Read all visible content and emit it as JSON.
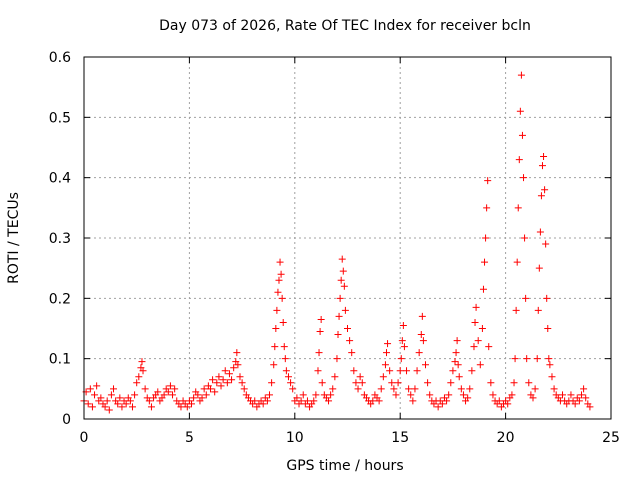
{
  "chart_data": {
    "type": "scatter",
    "title": "Day 073 of 2026, Rate Of TEC Index for receiver bcln",
    "xlabel": "GPS time / hours",
    "ylabel": "ROTI / TECUs",
    "xlim": [
      0,
      25
    ],
    "ylim": [
      0,
      0.6
    ],
    "xticks": [
      0,
      5,
      10,
      15,
      20,
      25
    ],
    "yticks": [
      0,
      0.1,
      0.2,
      0.3,
      0.4,
      0.5,
      0.6
    ],
    "xtick_labels": [
      "0",
      "5",
      "10",
      "15",
      "20",
      "25"
    ],
    "ytick_labels": [
      "0",
      "0.1",
      "0.2",
      "0.3",
      "0.4",
      "0.5",
      "0.6"
    ],
    "grid": true,
    "marker": "plus",
    "series": [
      {
        "name": "ROTI",
        "color": "#ff0000",
        "points": [
          [
            0.0,
            0.03
          ],
          [
            0.1,
            0.045
          ],
          [
            0.2,
            0.025
          ],
          [
            0.3,
            0.05
          ],
          [
            0.4,
            0.02
          ],
          [
            0.5,
            0.04
          ],
          [
            0.6,
            0.055
          ],
          [
            0.7,
            0.03
          ],
          [
            0.8,
            0.035
          ],
          [
            0.9,
            0.025
          ],
          [
            1.0,
            0.02
          ],
          [
            1.1,
            0.03
          ],
          [
            1.2,
            0.015
          ],
          [
            1.3,
            0.04
          ],
          [
            1.4,
            0.05
          ],
          [
            1.5,
            0.03
          ],
          [
            1.6,
            0.025
          ],
          [
            1.7,
            0.035
          ],
          [
            1.8,
            0.02
          ],
          [
            1.9,
            0.03
          ],
          [
            2.0,
            0.025
          ],
          [
            2.1,
            0.035
          ],
          [
            2.2,
            0.03
          ],
          [
            2.3,
            0.02
          ],
          [
            2.4,
            0.04
          ],
          [
            2.5,
            0.06
          ],
          [
            2.6,
            0.07
          ],
          [
            2.7,
            0.085
          ],
          [
            2.75,
            0.095
          ],
          [
            2.8,
            0.08
          ],
          [
            2.9,
            0.05
          ],
          [
            3.0,
            0.035
          ],
          [
            3.1,
            0.03
          ],
          [
            3.2,
            0.02
          ],
          [
            3.3,
            0.035
          ],
          [
            3.4,
            0.04
          ],
          [
            3.5,
            0.045
          ],
          [
            3.6,
            0.03
          ],
          [
            3.7,
            0.035
          ],
          [
            3.8,
            0.04
          ],
          [
            3.9,
            0.05
          ],
          [
            4.0,
            0.045
          ],
          [
            4.1,
            0.055
          ],
          [
            4.2,
            0.04
          ],
          [
            4.3,
            0.05
          ],
          [
            4.4,
            0.03
          ],
          [
            4.5,
            0.025
          ],
          [
            4.6,
            0.02
          ],
          [
            4.7,
            0.03
          ],
          [
            4.8,
            0.025
          ],
          [
            4.9,
            0.02
          ],
          [
            5.0,
            0.03
          ],
          [
            5.1,
            0.025
          ],
          [
            5.2,
            0.035
          ],
          [
            5.3,
            0.045
          ],
          [
            5.4,
            0.04
          ],
          [
            5.5,
            0.03
          ],
          [
            5.6,
            0.035
          ],
          [
            5.7,
            0.05
          ],
          [
            5.8,
            0.04
          ],
          [
            5.9,
            0.055
          ],
          [
            6.0,
            0.05
          ],
          [
            6.1,
            0.065
          ],
          [
            6.2,
            0.045
          ],
          [
            6.3,
            0.06
          ],
          [
            6.4,
            0.07
          ],
          [
            6.5,
            0.055
          ],
          [
            6.6,
            0.065
          ],
          [
            6.7,
            0.08
          ],
          [
            6.8,
            0.06
          ],
          [
            6.9,
            0.075
          ],
          [
            7.0,
            0.065
          ],
          [
            7.1,
            0.085
          ],
          [
            7.2,
            0.095
          ],
          [
            7.25,
            0.11
          ],
          [
            7.3,
            0.09
          ],
          [
            7.4,
            0.07
          ],
          [
            7.5,
            0.06
          ],
          [
            7.6,
            0.05
          ],
          [
            7.7,
            0.04
          ],
          [
            7.8,
            0.035
          ],
          [
            7.9,
            0.03
          ],
          [
            8.0,
            0.025
          ],
          [
            8.1,
            0.03
          ],
          [
            8.2,
            0.02
          ],
          [
            8.3,
            0.025
          ],
          [
            8.4,
            0.03
          ],
          [
            8.5,
            0.025
          ],
          [
            8.6,
            0.035
          ],
          [
            8.7,
            0.03
          ],
          [
            8.8,
            0.04
          ],
          [
            8.9,
            0.06
          ],
          [
            9.0,
            0.09
          ],
          [
            9.05,
            0.12
          ],
          [
            9.1,
            0.15
          ],
          [
            9.15,
            0.18
          ],
          [
            9.2,
            0.21
          ],
          [
            9.25,
            0.23
          ],
          [
            9.3,
            0.26
          ],
          [
            9.35,
            0.24
          ],
          [
            9.4,
            0.2
          ],
          [
            9.45,
            0.16
          ],
          [
            9.5,
            0.12
          ],
          [
            9.55,
            0.1
          ],
          [
            9.6,
            0.08
          ],
          [
            9.7,
            0.07
          ],
          [
            9.8,
            0.06
          ],
          [
            9.9,
            0.05
          ],
          [
            10.0,
            0.03
          ],
          [
            10.1,
            0.035
          ],
          [
            10.2,
            0.025
          ],
          [
            10.3,
            0.03
          ],
          [
            10.4,
            0.04
          ],
          [
            10.5,
            0.025
          ],
          [
            10.6,
            0.03
          ],
          [
            10.7,
            0.02
          ],
          [
            10.8,
            0.025
          ],
          [
            10.9,
            0.03
          ],
          [
            11.0,
            0.04
          ],
          [
            11.1,
            0.08
          ],
          [
            11.15,
            0.11
          ],
          [
            11.2,
            0.145
          ],
          [
            11.25,
            0.165
          ],
          [
            11.3,
            0.06
          ],
          [
            11.4,
            0.04
          ],
          [
            11.5,
            0.035
          ],
          [
            11.6,
            0.03
          ],
          [
            11.7,
            0.04
          ],
          [
            11.8,
            0.05
          ],
          [
            11.9,
            0.07
          ],
          [
            12.0,
            0.1
          ],
          [
            12.05,
            0.14
          ],
          [
            12.1,
            0.17
          ],
          [
            12.15,
            0.2
          ],
          [
            12.2,
            0.23
          ],
          [
            12.25,
            0.265
          ],
          [
            12.3,
            0.245
          ],
          [
            12.35,
            0.22
          ],
          [
            12.4,
            0.18
          ],
          [
            12.5,
            0.15
          ],
          [
            12.6,
            0.13
          ],
          [
            12.7,
            0.11
          ],
          [
            12.8,
            0.08
          ],
          [
            12.9,
            0.06
          ],
          [
            13.0,
            0.05
          ],
          [
            13.1,
            0.07
          ],
          [
            13.2,
            0.06
          ],
          [
            13.3,
            0.04
          ],
          [
            13.4,
            0.035
          ],
          [
            13.5,
            0.03
          ],
          [
            13.6,
            0.025
          ],
          [
            13.7,
            0.03
          ],
          [
            13.8,
            0.04
          ],
          [
            13.9,
            0.035
          ],
          [
            14.0,
            0.03
          ],
          [
            14.1,
            0.05
          ],
          [
            14.2,
            0.07
          ],
          [
            14.3,
            0.09
          ],
          [
            14.35,
            0.11
          ],
          [
            14.4,
            0.125
          ],
          [
            14.5,
            0.08
          ],
          [
            14.6,
            0.06
          ],
          [
            14.7,
            0.05
          ],
          [
            14.8,
            0.04
          ],
          [
            14.9,
            0.06
          ],
          [
            15.0,
            0.08
          ],
          [
            15.05,
            0.1
          ],
          [
            15.1,
            0.13
          ],
          [
            15.15,
            0.155
          ],
          [
            15.2,
            0.12
          ],
          [
            15.3,
            0.08
          ],
          [
            15.4,
            0.05
          ],
          [
            15.5,
            0.04
          ],
          [
            15.6,
            0.03
          ],
          [
            15.7,
            0.05
          ],
          [
            15.8,
            0.08
          ],
          [
            15.9,
            0.11
          ],
          [
            16.0,
            0.14
          ],
          [
            16.05,
            0.17
          ],
          [
            16.1,
            0.13
          ],
          [
            16.2,
            0.09
          ],
          [
            16.3,
            0.06
          ],
          [
            16.4,
            0.04
          ],
          [
            16.5,
            0.03
          ],
          [
            16.6,
            0.025
          ],
          [
            16.7,
            0.03
          ],
          [
            16.8,
            0.02
          ],
          [
            16.9,
            0.03
          ],
          [
            17.0,
            0.025
          ],
          [
            17.1,
            0.035
          ],
          [
            17.2,
            0.03
          ],
          [
            17.3,
            0.04
          ],
          [
            17.4,
            0.06
          ],
          [
            17.5,
            0.08
          ],
          [
            17.6,
            0.095
          ],
          [
            17.65,
            0.11
          ],
          [
            17.7,
            0.13
          ],
          [
            17.75,
            0.09
          ],
          [
            17.8,
            0.07
          ],
          [
            17.9,
            0.05
          ],
          [
            18.0,
            0.04
          ],
          [
            18.1,
            0.03
          ],
          [
            18.2,
            0.035
          ],
          [
            18.3,
            0.05
          ],
          [
            18.4,
            0.08
          ],
          [
            18.5,
            0.12
          ],
          [
            18.55,
            0.16
          ],
          [
            18.6,
            0.185
          ],
          [
            18.7,
            0.13
          ],
          [
            18.8,
            0.09
          ],
          [
            18.9,
            0.15
          ],
          [
            18.95,
            0.215
          ],
          [
            19.0,
            0.26
          ],
          [
            19.05,
            0.3
          ],
          [
            19.1,
            0.35
          ],
          [
            19.15,
            0.395
          ],
          [
            19.2,
            0.12
          ],
          [
            19.3,
            0.06
          ],
          [
            19.4,
            0.04
          ],
          [
            19.5,
            0.03
          ],
          [
            19.6,
            0.025
          ],
          [
            19.7,
            0.03
          ],
          [
            19.8,
            0.02
          ],
          [
            19.9,
            0.025
          ],
          [
            20.0,
            0.03
          ],
          [
            20.1,
            0.025
          ],
          [
            20.2,
            0.035
          ],
          [
            20.3,
            0.04
          ],
          [
            20.4,
            0.06
          ],
          [
            20.45,
            0.1
          ],
          [
            20.5,
            0.18
          ],
          [
            20.55,
            0.26
          ],
          [
            20.6,
            0.35
          ],
          [
            20.65,
            0.43
          ],
          [
            20.7,
            0.51
          ],
          [
            20.75,
            0.57
          ],
          [
            20.8,
            0.47
          ],
          [
            20.85,
            0.4
          ],
          [
            20.9,
            0.3
          ],
          [
            20.95,
            0.2
          ],
          [
            21.0,
            0.1
          ],
          [
            21.1,
            0.06
          ],
          [
            21.2,
            0.04
          ],
          [
            21.3,
            0.035
          ],
          [
            21.4,
            0.05
          ],
          [
            21.5,
            0.1
          ],
          [
            21.55,
            0.18
          ],
          [
            21.6,
            0.25
          ],
          [
            21.65,
            0.31
          ],
          [
            21.7,
            0.37
          ],
          [
            21.75,
            0.42
          ],
          [
            21.8,
            0.435
          ],
          [
            21.85,
            0.38
          ],
          [
            21.9,
            0.29
          ],
          [
            21.95,
            0.2
          ],
          [
            22.0,
            0.15
          ],
          [
            22.05,
            0.1
          ],
          [
            22.1,
            0.09
          ],
          [
            22.2,
            0.07
          ],
          [
            22.3,
            0.05
          ],
          [
            22.4,
            0.04
          ],
          [
            22.5,
            0.035
          ],
          [
            22.6,
            0.03
          ],
          [
            22.7,
            0.04
          ],
          [
            22.8,
            0.03
          ],
          [
            22.9,
            0.025
          ],
          [
            23.0,
            0.03
          ],
          [
            23.1,
            0.04
          ],
          [
            23.2,
            0.03
          ],
          [
            23.3,
            0.025
          ],
          [
            23.4,
            0.035
          ],
          [
            23.5,
            0.03
          ],
          [
            23.6,
            0.04
          ],
          [
            23.7,
            0.05
          ],
          [
            23.8,
            0.035
          ],
          [
            23.9,
            0.025
          ],
          [
            24.0,
            0.02
          ]
        ]
      }
    ]
  }
}
